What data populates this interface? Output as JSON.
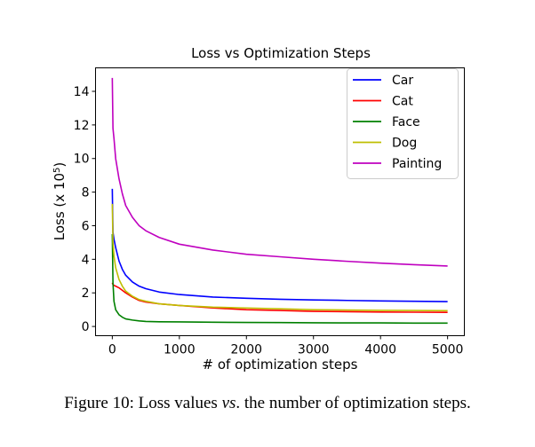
{
  "caption": {
    "prefix": "Figure 10: Loss values ",
    "vs": "vs",
    "suffix": ". the number of optimization steps."
  },
  "chart_data": {
    "type": "line",
    "title": "Loss vs Optimization Steps",
    "xlabel": "# of optimization steps",
    "ylabel_prefix": "Loss (x 10",
    "ylabel_sup": "5",
    "ylabel_suffix": ")",
    "xlim": [
      -250,
      5250
    ],
    "ylim": [
      -0.55,
      15.4
    ],
    "xticks": [
      0,
      1000,
      2000,
      3000,
      4000,
      5000
    ],
    "yticks": [
      0,
      2,
      4,
      6,
      8,
      10,
      12,
      14
    ],
    "grid": false,
    "legend_position": "top-right",
    "x": [
      0,
      10,
      25,
      50,
      100,
      150,
      200,
      300,
      400,
      500,
      700,
      1000,
      1500,
      2000,
      2500,
      3000,
      3500,
      4000,
      4500,
      5000
    ],
    "series": [
      {
        "name": "Car",
        "color": "#0000ff",
        "values": [
          8.2,
          5.6,
          5.2,
          4.7,
          3.9,
          3.4,
          3.05,
          2.65,
          2.4,
          2.25,
          2.05,
          1.9,
          1.75,
          1.68,
          1.62,
          1.58,
          1.55,
          1.52,
          1.5,
          1.48
        ]
      },
      {
        "name": "Cat",
        "color": "#ff0000",
        "values": [
          2.6,
          2.5,
          2.45,
          2.4,
          2.3,
          2.15,
          2.0,
          1.75,
          1.55,
          1.45,
          1.35,
          1.25,
          1.1,
          1.0,
          0.95,
          0.9,
          0.88,
          0.86,
          0.85,
          0.84
        ]
      },
      {
        "name": "Face",
        "color": "#008000",
        "values": [
          5.5,
          2.6,
          1.5,
          1.0,
          0.7,
          0.55,
          0.45,
          0.38,
          0.33,
          0.3,
          0.28,
          0.27,
          0.25,
          0.24,
          0.23,
          0.22,
          0.21,
          0.21,
          0.2,
          0.2
        ]
      },
      {
        "name": "Dog",
        "color": "#bfbf00",
        "values": [
          7.3,
          5.0,
          4.2,
          3.5,
          2.8,
          2.4,
          2.1,
          1.8,
          1.6,
          1.5,
          1.35,
          1.25,
          1.15,
          1.1,
          1.05,
          1.0,
          0.98,
          0.96,
          0.95,
          0.94
        ]
      },
      {
        "name": "Painting",
        "color": "#bf00bf",
        "values": [
          14.8,
          11.8,
          11.2,
          10.0,
          8.8,
          7.9,
          7.2,
          6.5,
          6.0,
          5.7,
          5.3,
          4.9,
          4.55,
          4.3,
          4.15,
          4.0,
          3.88,
          3.77,
          3.68,
          3.6
        ]
      }
    ]
  }
}
